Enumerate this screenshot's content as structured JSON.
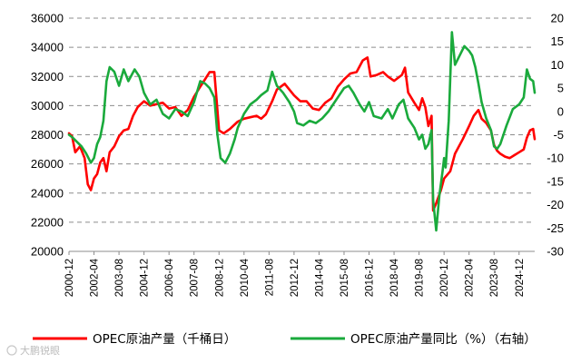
{
  "chart_data": {
    "type": "line",
    "x_range": [
      "2000-12",
      "2025-10"
    ],
    "x_ticks": [
      "2000-12",
      "2002-04",
      "2003-08",
      "2004-12",
      "2006-04",
      "2007-08",
      "2008-12",
      "2010-04",
      "2011-08",
      "2012-12",
      "2014-04",
      "2015-08",
      "2016-12",
      "2018-04",
      "2019-08",
      "2020-12",
      "2022-04",
      "2023-08",
      "2024-12"
    ],
    "y_left": {
      "min": 20000,
      "max": 36000,
      "step": 2000,
      "ticks": [
        "20000",
        "22000",
        "24000",
        "26000",
        "28000",
        "30000",
        "32000",
        "34000",
        "36000"
      ]
    },
    "y_right": {
      "min": -30,
      "max": 20,
      "step": 5,
      "ticks": [
        "-30",
        "-25",
        "-20",
        "-15",
        "-10",
        "-5",
        "0",
        "5",
        "10",
        "15",
        "20"
      ]
    },
    "grid": "horizontal dashed",
    "legend_position": "bottom",
    "series": [
      {
        "name": "OPEC原油产量（千桶日）",
        "axis": "left",
        "color": "#ff0000",
        "points": [
          [
            "2000-12",
            28100
          ],
          [
            "2001-02",
            27900
          ],
          [
            "2001-04",
            26800
          ],
          [
            "2001-07",
            27200
          ],
          [
            "2001-10",
            26400
          ],
          [
            "2001-12",
            24600
          ],
          [
            "2002-02",
            24200
          ],
          [
            "2002-04",
            25000
          ],
          [
            "2002-06",
            25300
          ],
          [
            "2002-08",
            26100
          ],
          [
            "2002-10",
            26400
          ],
          [
            "2002-12",
            25500
          ],
          [
            "2003-02",
            26800
          ],
          [
            "2003-05",
            27200
          ],
          [
            "2003-08",
            27900
          ],
          [
            "2003-11",
            28300
          ],
          [
            "2004-02",
            28400
          ],
          [
            "2004-05",
            29300
          ],
          [
            "2004-08",
            29900
          ],
          [
            "2004-12",
            30300
          ],
          [
            "2005-04",
            30000
          ],
          [
            "2005-08",
            30100
          ],
          [
            "2005-12",
            30200
          ],
          [
            "2006-04",
            29800
          ],
          [
            "2006-08",
            29900
          ],
          [
            "2006-12",
            29300
          ],
          [
            "2007-04",
            29700
          ],
          [
            "2007-08",
            30600
          ],
          [
            "2007-12",
            31300
          ],
          [
            "2008-03",
            31800
          ],
          [
            "2008-06",
            32300
          ],
          [
            "2008-09",
            32300
          ],
          [
            "2008-12",
            28300
          ],
          [
            "2009-03",
            28100
          ],
          [
            "2009-07",
            28400
          ],
          [
            "2009-12",
            28900
          ],
          [
            "2010-04",
            29100
          ],
          [
            "2010-08",
            29200
          ],
          [
            "2010-12",
            29300
          ],
          [
            "2011-03",
            29100
          ],
          [
            "2011-06",
            29400
          ],
          [
            "2011-10",
            30300
          ],
          [
            "2012-01",
            31100
          ],
          [
            "2012-06",
            31500
          ],
          [
            "2012-12",
            30700
          ],
          [
            "2013-04",
            30300
          ],
          [
            "2013-08",
            30300
          ],
          [
            "2013-12",
            29800
          ],
          [
            "2014-04",
            29700
          ],
          [
            "2014-08",
            30200
          ],
          [
            "2014-12",
            30500
          ],
          [
            "2015-04",
            31300
          ],
          [
            "2015-08",
            31800
          ],
          [
            "2015-12",
            32200
          ],
          [
            "2016-04",
            32300
          ],
          [
            "2016-08",
            33100
          ],
          [
            "2016-11",
            33300
          ],
          [
            "2017-01",
            32000
          ],
          [
            "2017-05",
            32100
          ],
          [
            "2017-09",
            32300
          ],
          [
            "2017-12",
            32000
          ],
          [
            "2018-04",
            31700
          ],
          [
            "2018-09",
            32100
          ],
          [
            "2018-11",
            32600
          ],
          [
            "2019-01",
            30900
          ],
          [
            "2019-05",
            30200
          ],
          [
            "2019-08",
            29700
          ],
          [
            "2019-10",
            30500
          ],
          [
            "2019-12",
            29900
          ],
          [
            "2020-02",
            28600
          ],
          [
            "2020-04",
            29300
          ],
          [
            "2020-05",
            22800
          ],
          [
            "2020-07",
            23300
          ],
          [
            "2020-10",
            24200
          ],
          [
            "2020-12",
            25000
          ],
          [
            "2021-04",
            25500
          ],
          [
            "2021-07",
            26700
          ],
          [
            "2021-12",
            27700
          ],
          [
            "2022-04",
            28600
          ],
          [
            "2022-07",
            29300
          ],
          [
            "2022-10",
            29700
          ],
          [
            "2022-12",
            29100
          ],
          [
            "2023-03",
            28800
          ],
          [
            "2023-06",
            28300
          ],
          [
            "2023-08",
            27300
          ],
          [
            "2023-10",
            26900
          ],
          [
            "2023-12",
            26700
          ],
          [
            "2024-03",
            26500
          ],
          [
            "2024-06",
            26400
          ],
          [
            "2024-09",
            26600
          ],
          [
            "2024-12",
            26800
          ],
          [
            "2025-03",
            27000
          ],
          [
            "2025-05",
            27800
          ],
          [
            "2025-07",
            28300
          ],
          [
            "2025-09",
            28400
          ],
          [
            "2025-10",
            27700
          ]
        ]
      },
      {
        "name": "OPEC原油产量同比（%）（右轴）",
        "axis": "right",
        "color": "#1aaa3c",
        "points": [
          [
            "2000-12",
            -5
          ],
          [
            "2001-02",
            -5.5
          ],
          [
            "2001-05",
            -6.5
          ],
          [
            "2001-08",
            -7.5
          ],
          [
            "2001-11",
            -9
          ],
          [
            "2002-02",
            -11
          ],
          [
            "2002-04",
            -10
          ],
          [
            "2002-06",
            -7
          ],
          [
            "2002-08",
            -5.5
          ],
          [
            "2002-10",
            -2
          ],
          [
            "2002-12",
            6.5
          ],
          [
            "2003-02",
            9.5
          ],
          [
            "2003-05",
            8.5
          ],
          [
            "2003-08",
            5.5
          ],
          [
            "2003-11",
            9
          ],
          [
            "2004-02",
            6.5
          ],
          [
            "2004-06",
            9
          ],
          [
            "2004-09",
            7.5
          ],
          [
            "2004-12",
            4
          ],
          [
            "2005-04",
            1.5
          ],
          [
            "2005-08",
            2.5
          ],
          [
            "2005-12",
            -0.5
          ],
          [
            "2006-04",
            -1.5
          ],
          [
            "2006-08",
            0.5
          ],
          [
            "2006-12",
            0
          ],
          [
            "2007-04",
            -1
          ],
          [
            "2007-08",
            2
          ],
          [
            "2007-12",
            6.5
          ],
          [
            "2008-03",
            6
          ],
          [
            "2008-06",
            5
          ],
          [
            "2008-09",
            3
          ],
          [
            "2008-11",
            -5
          ],
          [
            "2009-01",
            -10
          ],
          [
            "2009-04",
            -11
          ],
          [
            "2009-07",
            -9
          ],
          [
            "2009-10",
            -6
          ],
          [
            "2009-12",
            -3.5
          ],
          [
            "2010-04",
            -0.5
          ],
          [
            "2010-08",
            1.5
          ],
          [
            "2010-12",
            2.5
          ],
          [
            "2011-03",
            3.5
          ],
          [
            "2011-07",
            4.5
          ],
          [
            "2011-10",
            8.5
          ],
          [
            "2012-01",
            5.5
          ],
          [
            "2012-05",
            4
          ],
          [
            "2012-09",
            2
          ],
          [
            "2012-12",
            0
          ],
          [
            "2013-02",
            -2.5
          ],
          [
            "2013-06",
            -3
          ],
          [
            "2013-10",
            -2
          ],
          [
            "2014-02",
            -2.5
          ],
          [
            "2014-06",
            -1.5
          ],
          [
            "2014-10",
            0
          ],
          [
            "2015-01",
            1.5
          ],
          [
            "2015-05",
            3.5
          ],
          [
            "2015-08",
            5
          ],
          [
            "2015-11",
            5.5
          ],
          [
            "2016-02",
            4
          ],
          [
            "2016-06",
            1.5
          ],
          [
            "2016-09",
            0
          ],
          [
            "2016-12",
            2
          ],
          [
            "2017-03",
            -1
          ],
          [
            "2017-08",
            -1.5
          ],
          [
            "2017-12",
            0.5
          ],
          [
            "2018-03",
            -1.5
          ],
          [
            "2018-07",
            1.5
          ],
          [
            "2018-10",
            2.5
          ],
          [
            "2019-01",
            -1.5
          ],
          [
            "2019-05",
            -3.5
          ],
          [
            "2019-08",
            -6
          ],
          [
            "2019-10",
            -5
          ],
          [
            "2019-12",
            -8
          ],
          [
            "2020-02",
            -7
          ],
          [
            "2020-04",
            -4
          ],
          [
            "2020-05",
            -19
          ],
          [
            "2020-07",
            -25.5
          ],
          [
            "2020-09",
            -18
          ],
          [
            "2020-11",
            -13
          ],
          [
            "2020-12",
            -10
          ],
          [
            "2021-01",
            -12
          ],
          [
            "2021-03",
            -2
          ],
          [
            "2021-05",
            17
          ],
          [
            "2021-07",
            10
          ],
          [
            "2021-10",
            12
          ],
          [
            "2022-01",
            14
          ],
          [
            "2022-04",
            13
          ],
          [
            "2022-06",
            12
          ],
          [
            "2022-08",
            9.5
          ],
          [
            "2022-10",
            6
          ],
          [
            "2022-12",
            2
          ],
          [
            "2023-03",
            -1.5
          ],
          [
            "2023-06",
            -4
          ],
          [
            "2023-08",
            -7.5
          ],
          [
            "2023-10",
            -8
          ],
          [
            "2023-12",
            -7
          ],
          [
            "2024-04",
            -3
          ],
          [
            "2024-08",
            0.5
          ],
          [
            "2024-12",
            1.5
          ],
          [
            "2025-03",
            3
          ],
          [
            "2025-05",
            9
          ],
          [
            "2025-07",
            7
          ],
          [
            "2025-09",
            6.5
          ],
          [
            "2025-10",
            4
          ]
        ]
      }
    ]
  },
  "legend": {
    "items": [
      {
        "label": "OPEC原油产量（千桶日）",
        "color": "#ff0000"
      },
      {
        "label": "OPEC原油产量同比（%）（右轴）",
        "color": "#1aaa3c"
      }
    ]
  },
  "watermark": {
    "text": "大鹏锐眼"
  }
}
